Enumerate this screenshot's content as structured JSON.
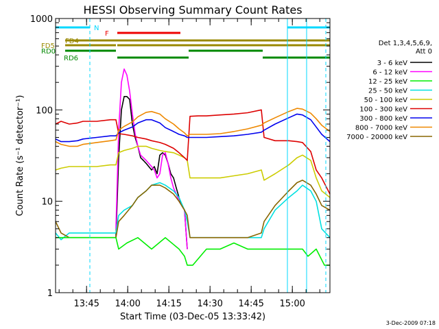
{
  "chart_data": {
    "type": "line",
    "title": "HESSI Observing Summary Count Rates",
    "xlabel": "Start Time (03-Dec-05 13:33:42)",
    "ylabel": "Count Rate (s⁻¹ detector⁻¹)",
    "yscale": "log",
    "ylim": [
      1,
      1000
    ],
    "xlim_minutes_after_start": [
      0,
      100
    ],
    "x_ticks": [
      "13:45",
      "14:00",
      "14:15",
      "14:30",
      "14:45",
      "15:00"
    ],
    "y_ticks": [
      "1",
      "10",
      "100",
      "1000"
    ],
    "footer": "3-Dec-2009 07:18",
    "legend": {
      "placement": "right",
      "header": [
        "Det 1,3,4,5,6,9,",
        "Att 0"
      ],
      "entries": [
        {
          "label": "3 - 6 keV",
          "color": "#000000"
        },
        {
          "label": "6 - 12 keV",
          "color": "#ff00ff"
        },
        {
          "label": "12 - 25 keV",
          "color": "#00ee00"
        },
        {
          "label": "25 - 50 keV",
          "color": "#00e0e0"
        },
        {
          "label": "50 - 100 keV",
          "color": "#cccc00"
        },
        {
          "label": "100 - 300 keV",
          "color": "#dd0000"
        },
        {
          "label": "300 - 800 keV",
          "color": "#0000ee"
        },
        {
          "label": "800 - 7000 keV",
          "color": "#ee8800"
        },
        {
          "label": "7000 - 20000 keV",
          "color": "#886600"
        }
      ]
    },
    "flag_bars": [
      {
        "label": "N",
        "color": "#00d8ff",
        "segments": [
          [
            0,
            12.5
          ],
          [
            84.5,
            100
          ]
        ]
      },
      {
        "label": "F",
        "color": "#ee0000",
        "segments": [
          [
            22.5,
            45.5
          ]
        ]
      },
      {
        "label": "FD4",
        "color": "#998800",
        "segments": [
          [
            3.5,
            100
          ]
        ]
      },
      {
        "label": "FD5",
        "color": "#998800",
        "segments": [
          [
            3.5,
            22
          ],
          [
            22.5,
            100
          ]
        ]
      },
      {
        "label": "RD0",
        "color": "#008800",
        "segments": [
          [
            3.5,
            22
          ],
          [
            48.5,
            75.5
          ]
        ]
      },
      {
        "label": "RD6",
        "color": "#008800",
        "segments": [
          [
            22.5,
            48.5
          ],
          [
            75.5,
            100
          ]
        ]
      }
    ],
    "vlines": [
      {
        "t": 12.5,
        "style": "dashed",
        "color": "#00d8ff"
      },
      {
        "t": 84.5,
        "style": "solid",
        "color": "#00d8ff"
      },
      {
        "t": 91.5,
        "style": "solid",
        "color": "#00d8ff"
      },
      {
        "t": 98.5,
        "style": "dashed",
        "color": "#00d8ff"
      }
    ],
    "series": [
      {
        "name": "3 - 6 keV",
        "color": "#000000",
        "x": [
          22,
          23,
          24,
          25,
          26,
          27,
          28,
          29,
          30,
          31,
          32,
          33,
          35,
          36,
          37,
          38,
          39,
          40,
          41,
          42,
          43,
          44,
          45,
          46,
          47,
          48
        ],
        "y": [
          4,
          30,
          100,
          140,
          140,
          130,
          70,
          50,
          40,
          30,
          28,
          26,
          22,
          24,
          20,
          32,
          34,
          32,
          26,
          20,
          18,
          14,
          11,
          9,
          8,
          3
        ]
      },
      {
        "name": "6 - 12 keV",
        "color": "#ff00ff",
        "x": [
          22,
          23,
          24,
          25,
          26,
          27,
          28,
          29,
          30,
          31,
          32,
          33,
          35,
          36,
          37,
          38,
          39,
          40,
          41,
          42,
          43,
          44,
          45,
          46,
          47,
          48
        ],
        "y": [
          5,
          60,
          200,
          280,
          240,
          160,
          90,
          55,
          40,
          32,
          30,
          28,
          24,
          22,
          18,
          20,
          32,
          34,
          26,
          18,
          14,
          12,
          10,
          9,
          8,
          3
        ]
      },
      {
        "name": "25 - 50 keV",
        "color": "#00e0e0",
        "x": [
          0,
          2,
          5,
          8,
          10,
          15,
          20,
          22,
          23,
          25,
          28,
          30,
          33,
          35,
          38,
          40,
          43,
          45,
          47,
          48,
          49,
          55,
          60,
          65,
          70,
          75,
          76,
          80,
          85,
          88,
          90,
          93,
          95,
          97,
          100
        ],
        "y": [
          4.5,
          3.8,
          4.5,
          4.5,
          4.5,
          4.5,
          4.5,
          4.5,
          7,
          8,
          9,
          11,
          13,
          15,
          16,
          15,
          13,
          11,
          8,
          6,
          4,
          4,
          4,
          4,
          4,
          4,
          5,
          8,
          11,
          13,
          15,
          13,
          10,
          5,
          4
        ]
      },
      {
        "name": "50 - 100 keV",
        "color": "#cccc00",
        "x": [
          0,
          2,
          5,
          8,
          10,
          15,
          20,
          22,
          23,
          25,
          28,
          30,
          33,
          35,
          38,
          40,
          43,
          45,
          47,
          48,
          49,
          55,
          60,
          65,
          70,
          75,
          76,
          80,
          85,
          88,
          90,
          93,
          95,
          97,
          100
        ],
        "y": [
          22,
          23,
          24,
          24,
          24,
          24,
          25,
          25,
          34,
          36,
          38,
          40,
          40,
          38,
          36,
          35,
          34,
          32,
          30,
          28,
          18,
          18,
          18,
          19,
          20,
          22,
          17,
          20,
          25,
          30,
          32,
          28,
          18,
          13,
          11
        ]
      },
      {
        "name": "100 - 300 keV",
        "color": "#dd0000",
        "x": [
          0,
          2,
          5,
          8,
          10,
          15,
          20,
          22,
          23,
          25,
          28,
          30,
          33,
          35,
          38,
          40,
          43,
          45,
          47,
          48,
          49,
          52,
          55,
          60,
          65,
          70,
          75,
          76,
          80,
          85,
          88,
          90,
          93,
          95,
          97,
          100
        ],
        "y": [
          70,
          75,
          70,
          72,
          75,
          75,
          78,
          78,
          55,
          54,
          52,
          50,
          48,
          46,
          44,
          42,
          38,
          34,
          30,
          28,
          85,
          86,
          86,
          88,
          90,
          93,
          100,
          50,
          46,
          46,
          45,
          44,
          35,
          22,
          18,
          12
        ]
      },
      {
        "name": "300 - 800 keV",
        "color": "#0000ee",
        "x": [
          0,
          2,
          5,
          8,
          10,
          15,
          20,
          22,
          23,
          25,
          28,
          30,
          33,
          35,
          38,
          40,
          43,
          45,
          47,
          48,
          49,
          55,
          60,
          65,
          70,
          75,
          76,
          80,
          85,
          88,
          90,
          93,
          95,
          97,
          100
        ],
        "y": [
          48,
          45,
          45,
          46,
          48,
          50,
          52,
          52,
          56,
          60,
          65,
          72,
          78,
          78,
          72,
          64,
          58,
          54,
          52,
          50,
          50,
          50,
          51,
          52,
          54,
          57,
          60,
          70,
          82,
          90,
          88,
          78,
          65,
          54,
          45
        ]
      },
      {
        "name": "800 - 7000 keV",
        "color": "#ee8800",
        "x": [
          0,
          2,
          5,
          8,
          10,
          15,
          20,
          22,
          23,
          25,
          28,
          30,
          33,
          35,
          38,
          40,
          43,
          45,
          47,
          48,
          49,
          55,
          60,
          65,
          70,
          75,
          76,
          80,
          85,
          88,
          90,
          93,
          95,
          97,
          100
        ],
        "y": [
          45,
          42,
          40,
          40,
          42,
          44,
          46,
          47,
          60,
          66,
          74,
          84,
          94,
          96,
          90,
          80,
          70,
          62,
          56,
          52,
          54,
          54,
          55,
          58,
          62,
          68,
          72,
          82,
          96,
          104,
          102,
          92,
          80,
          68,
          58
        ]
      },
      {
        "name": "7000 - 20000 keV",
        "color": "#886600",
        "x": [
          0,
          2,
          5,
          8,
          10,
          15,
          20,
          22,
          23,
          25,
          28,
          30,
          33,
          35,
          38,
          40,
          43,
          45,
          47,
          48,
          49,
          55,
          60,
          65,
          70,
          75,
          76,
          80,
          85,
          88,
          90,
          93,
          95,
          97,
          100
        ],
        "y": [
          6,
          4.5,
          4,
          4,
          4,
          4,
          4,
          4,
          6,
          7,
          9,
          11,
          13,
          15,
          15,
          14,
          12,
          10,
          8,
          7,
          4,
          4,
          4,
          4,
          4,
          4.5,
          6,
          9,
          13,
          16,
          17,
          15,
          12,
          9,
          8
        ]
      },
      {
        "name": "12 - 25 keV",
        "color": "#00ee00",
        "x": [
          0,
          5,
          10,
          15,
          20,
          22,
          23,
          26,
          30,
          35,
          40,
          45,
          47,
          48,
          50,
          55,
          60,
          65,
          70,
          75,
          80,
          85,
          88,
          90,
          92,
          95,
          98,
          100
        ],
        "y": [
          4,
          4,
          4,
          4,
          4,
          4,
          3,
          3.5,
          4,
          3,
          4,
          3,
          2.5,
          2,
          2,
          3,
          3,
          3.5,
          3,
          3,
          3,
          3,
          3,
          3,
          2.5,
          3,
          2,
          2
        ]
      }
    ]
  }
}
